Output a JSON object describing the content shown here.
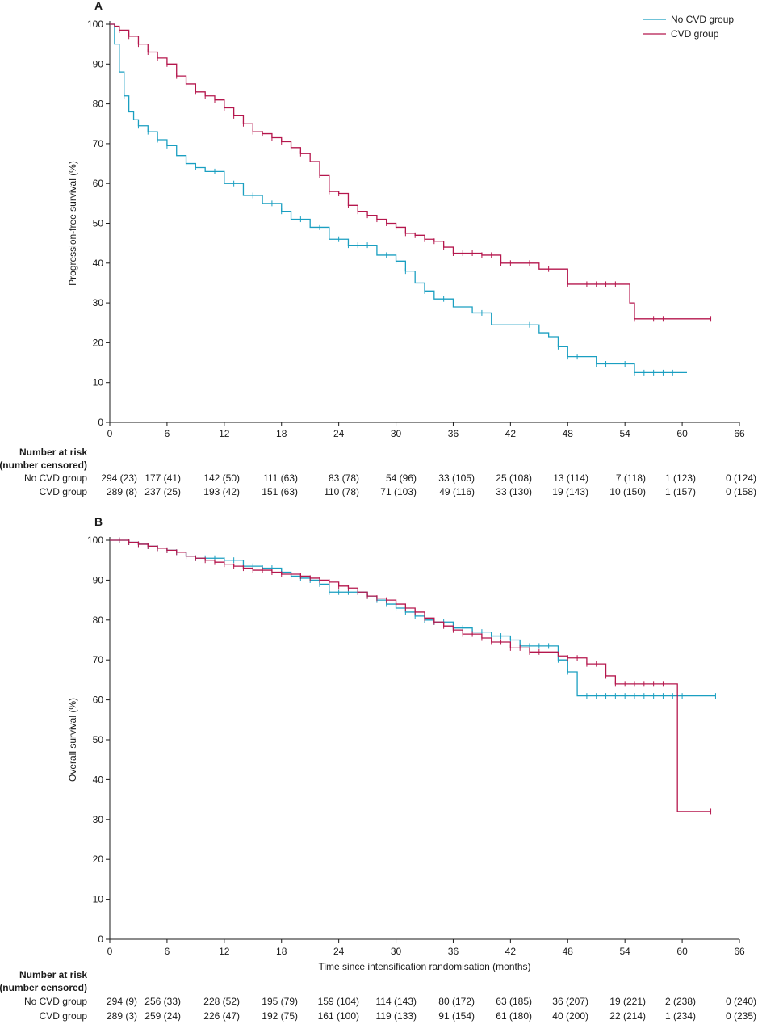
{
  "colors": {
    "no_cvd": "#1a9fc1",
    "cvd": "#b5174d",
    "axis": "#1a1a1a"
  },
  "legend": {
    "no_cvd": "No CVD group",
    "cvd": "CVD group"
  },
  "chart_data": [
    {
      "panel": "A",
      "type": "line",
      "step": true,
      "ylabel": "Progression-free survival (%)",
      "xlabel": "",
      "xlim": [
        0,
        66
      ],
      "ylim": [
        0,
        100
      ],
      "xticks": [
        0,
        6,
        12,
        18,
        24,
        30,
        36,
        42,
        48,
        54,
        60,
        66
      ],
      "yticks": [
        0,
        10,
        20,
        30,
        40,
        50,
        60,
        70,
        80,
        90,
        100
      ],
      "legend_position": "top-right",
      "series": [
        {
          "key": "no_cvd",
          "name": "No CVD group",
          "x": [
            0,
            0.5,
            1,
            1.5,
            2,
            2.5,
            3,
            4,
            5,
            6,
            7,
            8,
            9,
            10,
            12,
            14,
            16,
            18,
            19,
            21,
            23,
            25,
            27,
            28,
            30,
            31,
            32,
            33,
            34,
            36,
            38,
            40,
            44,
            45,
            46,
            47,
            48,
            49,
            51,
            55,
            60.5
          ],
          "y": [
            100,
            95,
            88,
            82,
            78,
            76,
            74.5,
            73,
            71,
            69.5,
            67,
            65,
            64,
            63,
            60,
            57,
            55,
            53,
            51,
            49,
            46,
            44.5,
            44.5,
            42,
            40.5,
            38,
            35,
            33,
            31,
            29,
            27.5,
            24.5,
            24.5,
            22.5,
            21.5,
            19,
            16.5,
            16.5,
            14.7,
            12.5,
            12.5
          ],
          "censor_x": [
            1.5,
            3,
            4,
            5,
            6,
            8,
            9,
            11,
            13,
            15,
            17,
            18,
            20,
            22,
            24,
            25,
            26,
            27,
            29,
            30,
            31,
            33,
            35,
            39,
            44,
            47,
            48,
            49,
            51,
            52,
            54,
            55,
            56,
            57,
            58,
            59
          ]
        },
        {
          "key": "cvd",
          "name": "CVD group",
          "x": [
            0,
            0.5,
            1,
            2,
            3,
            4,
            5,
            6,
            7,
            8,
            9,
            10,
            11,
            12,
            13,
            14,
            15,
            16,
            17,
            18,
            19,
            20,
            21,
            22,
            23,
            24,
            25,
            26,
            27,
            28,
            29,
            30,
            31,
            32,
            33,
            34,
            35,
            36,
            39,
            41,
            45,
            47.5,
            48,
            50,
            54.5,
            55,
            63
          ],
          "y": [
            100,
            99.5,
            98.5,
            97,
            95,
            93,
            91.5,
            90,
            87,
            85,
            83,
            82,
            81,
            79,
            77,
            75,
            73,
            72.5,
            71.5,
            70.5,
            69,
            67.5,
            65.5,
            62,
            58,
            57.5,
            54.5,
            53,
            52,
            51,
            50,
            49,
            47.5,
            47,
            46,
            45.5,
            44,
            42.5,
            42,
            40,
            38.5,
            38.5,
            34.7,
            34.7,
            30,
            26,
            26
          ],
          "censor_x": [
            1,
            2,
            3,
            4,
            5,
            6,
            7,
            8,
            9,
            10,
            11,
            12,
            13,
            14,
            15,
            16,
            17,
            18,
            19,
            20,
            22,
            23,
            24,
            25,
            26,
            27,
            28,
            29,
            30,
            31,
            32,
            33,
            34,
            35,
            36,
            37,
            38,
            39,
            40,
            41,
            42,
            44,
            46,
            48,
            50,
            51,
            52,
            53,
            55,
            57,
            58,
            63
          ]
        }
      ],
      "risk_table": {
        "header": [
          "Number at risk",
          "(number censored)"
        ],
        "rows": [
          {
            "label": "No CVD group",
            "values": [
              "294 (23)",
              "177 (41)",
              "142 (50)",
              "111 (63)",
              "83 (78)",
              "54 (96)",
              "33 (105)",
              "25 (108)",
              "13 (114)",
              "7 (118)",
              "1 (123)",
              "0 (124)"
            ]
          },
          {
            "label": "CVD group",
            "values": [
              "289 (8)",
              "237 (25)",
              "193 (42)",
              "151 (63)",
              "110 (78)",
              "71 (103)",
              "49 (116)",
              "33 (130)",
              "19 (143)",
              "10 (150)",
              "1 (157)",
              "0 (158)"
            ]
          }
        ]
      }
    },
    {
      "panel": "B",
      "type": "line",
      "step": true,
      "ylabel": "Overall survival (%)",
      "xlabel": "Time since intensification randomisation (months)",
      "xlim": [
        0,
        66
      ],
      "ylim": [
        0,
        100
      ],
      "xticks": [
        0,
        6,
        12,
        18,
        24,
        30,
        36,
        42,
        48,
        54,
        60,
        66
      ],
      "yticks": [
        0,
        10,
        20,
        30,
        40,
        50,
        60,
        70,
        80,
        90,
        100
      ],
      "series": [
        {
          "key": "no_cvd",
          "name": "No CVD group",
          "x": [
            0,
            2,
            3,
            4,
            5,
            6,
            7,
            8,
            9,
            10,
            12,
            14,
            16,
            18,
            19,
            20,
            21,
            22,
            23,
            25,
            27,
            28,
            29,
            30,
            31,
            32,
            33,
            34,
            36,
            38,
            40,
            42,
            43,
            46,
            47,
            48,
            49,
            63.5
          ],
          "y": [
            100,
            99.5,
            99,
            98.5,
            98,
            97.5,
            97,
            96,
            95.5,
            95.5,
            95,
            93.5,
            93,
            92,
            91,
            90.5,
            90,
            89,
            87,
            87,
            86,
            85,
            84,
            83,
            82,
            81,
            80,
            79.5,
            78,
            77,
            76,
            75,
            73.5,
            73.5,
            70,
            67,
            61,
            61
          ],
          "censor_x": [
            1,
            2,
            3,
            4,
            5,
            6,
            7,
            8,
            9,
            10,
            11,
            12,
            13,
            14,
            15,
            16,
            17,
            18,
            19,
            20,
            21,
            22,
            23,
            24,
            25,
            26,
            27,
            28,
            29,
            30,
            31,
            32,
            33,
            34,
            35,
            36,
            37,
            38,
            39,
            40,
            41,
            42,
            43,
            44,
            45,
            46,
            47,
            48,
            50,
            51,
            52,
            53,
            54,
            55,
            56,
            57,
            58,
            59,
            60,
            63.5
          ]
        },
        {
          "key": "cvd",
          "name": "CVD group",
          "x": [
            0,
            2,
            3,
            4,
            5,
            6,
            7,
            8,
            9,
            10,
            11,
            12,
            13,
            14,
            15,
            17,
            18,
            20,
            21,
            22,
            23,
            24,
            25,
            26,
            27,
            28,
            29,
            30,
            31,
            32,
            33,
            34,
            35,
            36,
            37,
            39,
            40,
            42,
            44,
            46,
            47,
            48,
            50,
            52,
            53,
            59.5,
            63
          ],
          "y": [
            100,
            99.5,
            99,
            98.5,
            98,
            97.5,
            97,
            96,
            95.5,
            95,
            94.5,
            94,
            93.5,
            93,
            92.5,
            92,
            91.5,
            91,
            90.5,
            90,
            89.5,
            88.5,
            88,
            87,
            86,
            85.5,
            85,
            84,
            83,
            82,
            80.5,
            79.5,
            78.5,
            77.5,
            76.5,
            75.5,
            74.5,
            73,
            72,
            72,
            71,
            70.5,
            69,
            66,
            64,
            32,
            32
          ],
          "censor_x": [
            1,
            2,
            3,
            4,
            5,
            6,
            7,
            8,
            9,
            10,
            11,
            12,
            13,
            14,
            15,
            16,
            17,
            18,
            19,
            20,
            21,
            22,
            23,
            24,
            25,
            26,
            27,
            28,
            29,
            30,
            31,
            32,
            33,
            34,
            35,
            36,
            37,
            38,
            39,
            40,
            41,
            42,
            43,
            44,
            45,
            48,
            49,
            50,
            51,
            52,
            53,
            54,
            55,
            56,
            57,
            58,
            63
          ]
        }
      ],
      "risk_table": {
        "header": [
          "Number at risk",
          "(number censored)"
        ],
        "rows": [
          {
            "label": "No CVD group",
            "values": [
              "294 (9)",
              "256 (33)",
              "228 (52)",
              "195 (79)",
              "159 (104)",
              "114 (143)",
              "80 (172)",
              "63 (185)",
              "36 (207)",
              "19 (221)",
              "2 (238)",
              "0 (240)"
            ]
          },
          {
            "label": "CVD group",
            "values": [
              "289 (3)",
              "259 (24)",
              "226 (47)",
              "192 (75)",
              "161 (100)",
              "119 (133)",
              "91 (154)",
              "61 (180)",
              "40 (200)",
              "22 (214)",
              "1 (234)",
              "0 (235)"
            ]
          }
        ]
      }
    }
  ]
}
